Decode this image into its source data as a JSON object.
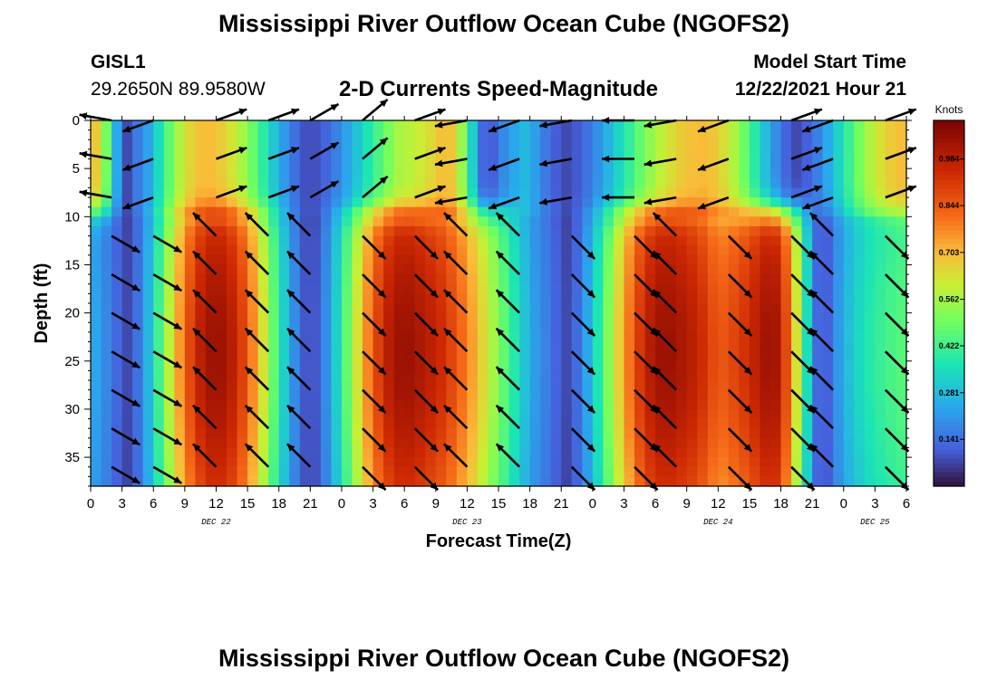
{
  "page": {
    "title": "Mississippi River Outflow Ocean Cube (NGOFS2)",
    "title_repeat": "Mississippi River Outflow Ocean Cube (NGOFS2)"
  },
  "station": {
    "id": "GISL1",
    "coords": "29.2650N  89.9580W"
  },
  "model": {
    "label": "Model Start Time",
    "time": "12/22/2021 Hour 21"
  },
  "chart_data": {
    "type": "heatmap",
    "subtitle": "2-D Currents Speed-Magnitude",
    "xlabel": "Forecast Time(Z)",
    "ylabel": "Depth (ft)",
    "x_ticks": [
      "0",
      "3",
      "6",
      "9",
      "12",
      "15",
      "18",
      "21",
      "0",
      "3",
      "6",
      "9",
      "12",
      "15",
      "18",
      "21",
      "0",
      "3",
      "6",
      "9",
      "12",
      "15",
      "18",
      "21",
      "0",
      "3",
      "6"
    ],
    "day_labels": [
      {
        "label": "DEC 22",
        "hour": 12
      },
      {
        "label": "DEC 23",
        "hour": 36
      },
      {
        "label": "DEC 24",
        "hour": 60
      },
      {
        "label": "DEC 25",
        "hour": 75
      }
    ],
    "xlim_hours": [
      0,
      78
    ],
    "y_ticks": [
      0,
      5,
      10,
      15,
      20,
      25,
      30,
      35
    ],
    "ylim_ft": [
      0,
      38
    ],
    "y_inverted": true,
    "colorbar": {
      "unit": "Knots",
      "min": 0.0,
      "max": 1.1,
      "tick_values": [
        0.984,
        0.844,
        0.703,
        0.562,
        0.422,
        0.281,
        0.141
      ],
      "tick_labels": [
        "0.984",
        "0.844",
        "0.703",
        "0.562",
        "0.422",
        "0.281",
        "0.141"
      ],
      "colormap": "turbo"
    },
    "speed_model": {
      "surface_peak_hours": [
        0,
        11,
        34,
        58.5,
        78
      ],
      "surface_min_hours": [
        3.5,
        21,
        38,
        45.5,
        67.5
      ],
      "deep_peak_hours": [
        12,
        30,
        55,
        65
      ],
      "deep_min_hours": [
        3.5,
        21,
        45.5,
        70
      ],
      "surface_peak_knots": 0.7,
      "deep_peak_knots": 1.04,
      "min_knots": 0.08,
      "shear_depth_ft": 9.5
    },
    "vectors": {
      "x_hours": [
        2,
        6,
        12,
        17,
        21,
        26,
        31,
        36,
        41,
        46,
        52,
        56,
        61,
        67,
        71,
        76
      ],
      "depth_ft": [
        0,
        4,
        8,
        12,
        16,
        20,
        24,
        28,
        32,
        36
      ],
      "upper_directions_deg": [
        170,
        200,
        20,
        20,
        30,
        40,
        20,
        190,
        200,
        190,
        180,
        190,
        200,
        20,
        200,
        20
      ],
      "deep_directions_deg": [
        330,
        330,
        135,
        135,
        135,
        315,
        315,
        135,
        135,
        315,
        315,
        135,
        315,
        315,
        135,
        315
      ],
      "arrow_length_px": 36
    }
  },
  "colors": {
    "vector": "#000000",
    "axis": "#000000"
  }
}
